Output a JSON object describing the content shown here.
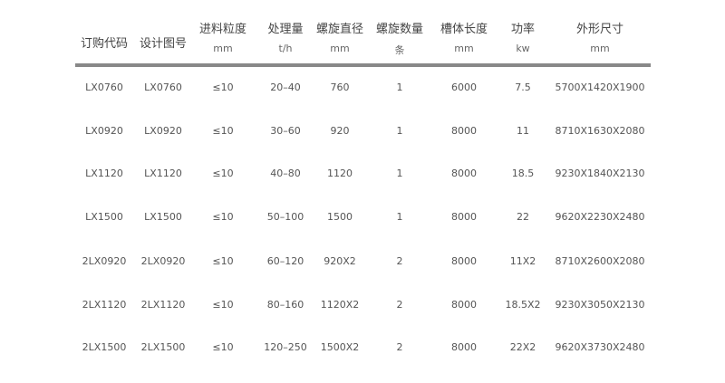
{
  "headers": [
    {
      "label": "订购代码",
      "unit": ""
    },
    {
      "label": "设计图号",
      "unit": ""
    },
    {
      "label": "进料粒度",
      "unit": "mm"
    },
    {
      "label": "处理量",
      "unit": "t/h"
    },
    {
      "label": "螺旋直径",
      "unit": "mm"
    },
    {
      "label": "螺旋数量",
      "unit": "条"
    },
    {
      "label": "槽体长度",
      "unit": "mm"
    },
    {
      "label": "功率",
      "unit": "kw"
    },
    {
      "label": "外形尺寸",
      "unit": "mm"
    }
  ],
  "rows": [
    [
      "LX0760",
      "LX0760",
      "≤10",
      "20–40",
      "760",
      "1",
      "6000",
      "7.5",
      "5700X1420X1900"
    ],
    [
      "LX0920",
      "LX0920",
      "≤10",
      "30–60",
      "920",
      "1",
      "8000",
      "11",
      "8710X1630X2080"
    ],
    [
      "LX1120",
      "LX1120",
      "≤10",
      "40–80",
      "1120",
      "1",
      "8000",
      "18.5",
      "9230X1840X2130"
    ],
    [
      "LX1500",
      "LX1500",
      "≤10",
      "50–100",
      "1500",
      "1",
      "8000",
      "22",
      "9620X2230X2480"
    ],
    [
      "2LX0920",
      "2LX0920",
      "≤10",
      "60–120",
      "920X2",
      "2",
      "8000",
      "11X2",
      "8710X2600X2080"
    ],
    [
      "2LX1120",
      "2LX1120",
      "≤10",
      "80–160",
      "1120X2",
      "2",
      "8000",
      "18.5X2",
      "9230X3050X2130"
    ],
    [
      "2LX1500",
      "2LX1500",
      "≤10",
      "120–250",
      "1500X2",
      "2",
      "8000",
      "22X2",
      "9620X3730X2480"
    ]
  ]
}
